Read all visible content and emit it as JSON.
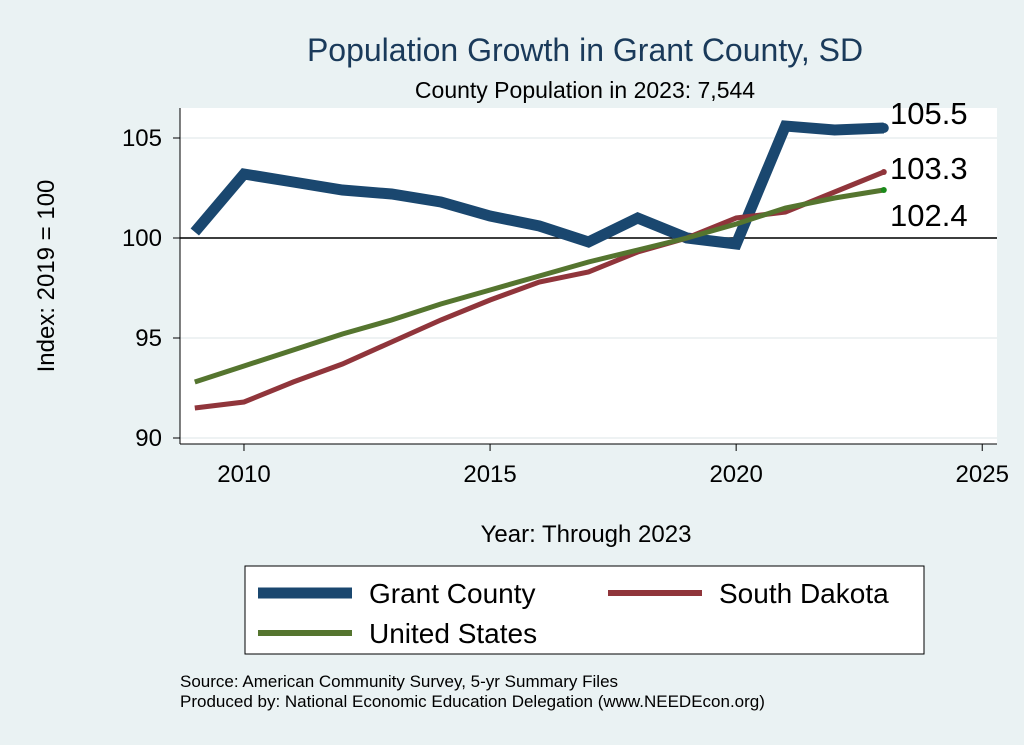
{
  "chart_data": {
    "type": "line",
    "title": "Population Growth in Grant County, SD",
    "subtitle": "County Population in 2023: 7,544",
    "xlabel": "Year: Through 2023",
    "ylabel": "Index: 2019 = 100",
    "xlim": [
      2008.7,
      2025.3
    ],
    "ylim": [
      89.7,
      106.5
    ],
    "xticks": [
      2010,
      2015,
      2020,
      2025
    ],
    "yticks": [
      90,
      95,
      100,
      105
    ],
    "reference_line": 100,
    "x": [
      2009,
      2010,
      2011,
      2012,
      2013,
      2014,
      2015,
      2016,
      2017,
      2018,
      2019,
      2020,
      2021,
      2022,
      2023
    ],
    "series": [
      {
        "name": "Grant  County",
        "color": "#1a476f",
        "values": [
          100.3,
          103.2,
          102.8,
          102.4,
          102.2,
          101.8,
          101.1,
          100.6,
          99.8,
          101.0,
          100.0,
          99.7,
          105.6,
          105.4,
          105.5
        ],
        "end_label": "105.5"
      },
      {
        "name": "South Dakota",
        "color": "#90353b",
        "values": [
          91.5,
          91.8,
          92.8,
          93.7,
          94.8,
          95.9,
          96.9,
          97.8,
          98.3,
          99.3,
          100.0,
          101.0,
          101.3,
          102.3,
          103.3
        ],
        "end_label": "103.3"
      },
      {
        "name": "United States",
        "color": "#55752f",
        "values": [
          92.8,
          93.6,
          94.4,
          95.2,
          95.9,
          96.7,
          97.4,
          98.1,
          98.8,
          99.4,
          100.0,
          100.7,
          101.5,
          102.0,
          102.4
        ],
        "end_label": "102.4"
      }
    ],
    "legend": [
      "Grant  County",
      "South Dakota",
      "United States"
    ],
    "legend_position": "bottom"
  },
  "footer": {
    "source": "Source: American Community Survey, 5-yr Summary Files",
    "produced_by": "Produced by: National Economic Education Delegation (www.NEEDEcon.org)"
  },
  "colors": {
    "background": "#eaf2f3",
    "plot_background": "#ffffff",
    "title": "#1a3a5a"
  }
}
